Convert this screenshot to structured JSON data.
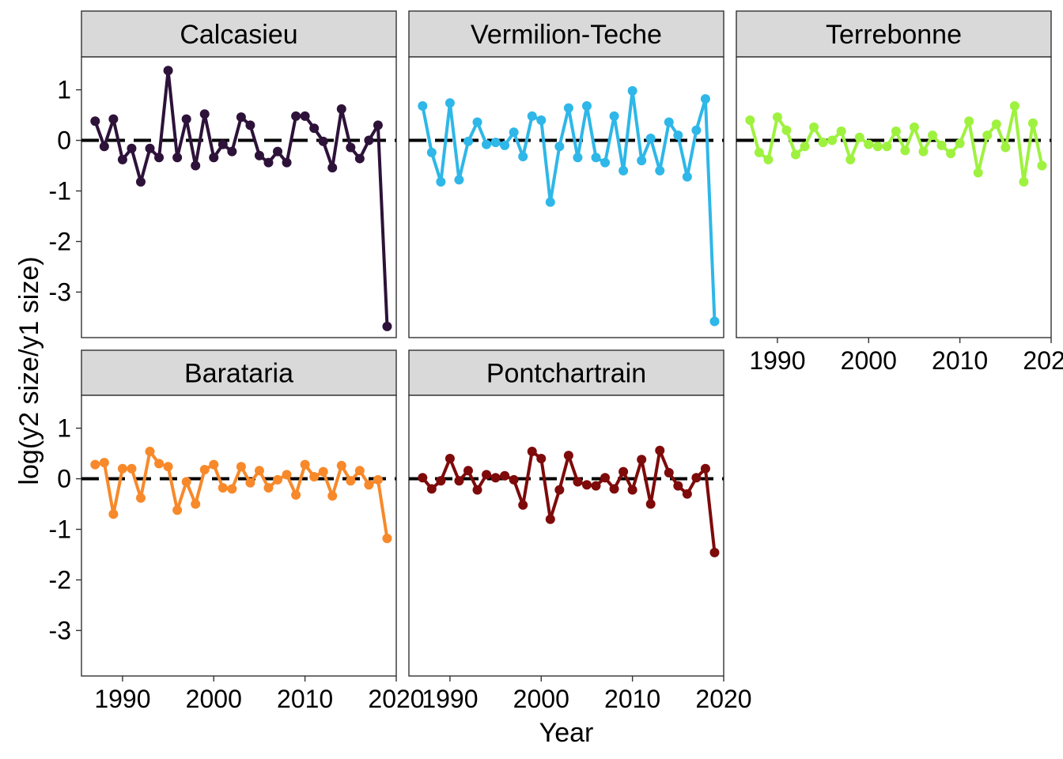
{
  "chart_data": {
    "type": "line",
    "xlabel": "Year",
    "ylabel": "log(y2 size/y1 size)",
    "xlim": [
      1985.5,
      2020
    ],
    "ylim": [
      -3.9,
      1.65
    ],
    "x_ticks": [
      1990,
      2000,
      2010,
      2020
    ],
    "x_tick_labels": [
      "1990",
      "2000",
      "2010",
      "2020"
    ],
    "y_ticks": [
      1,
      0,
      -1,
      -2,
      -3
    ],
    "y_tick_labels": [
      "1",
      "0",
      "-1",
      "-2",
      "-3"
    ],
    "reference_line": 0,
    "grid": false,
    "legend": "none",
    "x": [
      1987,
      1988,
      1989,
      1990,
      1991,
      1992,
      1993,
      1994,
      1995,
      1996,
      1997,
      1998,
      1999,
      2000,
      2001,
      2002,
      2003,
      2004,
      2005,
      2006,
      2007,
      2008,
      2009,
      2010,
      2011,
      2012,
      2013,
      2014,
      2015,
      2016,
      2017,
      2018,
      2019
    ],
    "panels": [
      {
        "title": "Calcasieu",
        "color": "#2d1239",
        "values": [
          0.38,
          -0.12,
          0.42,
          -0.38,
          -0.16,
          -0.82,
          -0.16,
          -0.34,
          1.38,
          -0.34,
          0.42,
          -0.5,
          0.52,
          -0.34,
          -0.08,
          -0.22,
          0.46,
          0.3,
          -0.3,
          -0.44,
          -0.22,
          -0.44,
          0.48,
          0.48,
          0.24,
          -0.02,
          -0.54,
          0.62,
          -0.14,
          -0.36,
          0.0,
          0.3,
          -3.68
        ]
      },
      {
        "title": "Vermilion-Teche",
        "color": "#2eb7e8",
        "values": [
          0.68,
          -0.24,
          -0.82,
          0.74,
          -0.78,
          -0.02,
          0.36,
          -0.08,
          -0.04,
          -0.1,
          0.16,
          -0.32,
          0.48,
          0.4,
          -1.22,
          -0.12,
          0.64,
          -0.34,
          0.68,
          -0.34,
          -0.44,
          0.48,
          -0.6,
          0.98,
          -0.4,
          0.04,
          -0.6,
          0.36,
          0.1,
          -0.72,
          0.2,
          0.82,
          -3.58
        ]
      },
      {
        "title": "Terrebonne",
        "color": "#9ef23f",
        "values": [
          0.4,
          -0.24,
          -0.38,
          0.46,
          0.2,
          -0.28,
          -0.12,
          0.26,
          -0.04,
          0.0,
          0.18,
          -0.38,
          0.06,
          -0.08,
          -0.12,
          -0.12,
          0.18,
          -0.2,
          0.26,
          -0.22,
          0.1,
          -0.1,
          -0.26,
          -0.06,
          0.38,
          -0.64,
          0.1,
          0.32,
          -0.14,
          0.68,
          -0.82,
          0.34,
          -0.5
        ]
      },
      {
        "title": "Barataria",
        "color": "#f7892a",
        "values": [
          0.28,
          0.32,
          -0.7,
          0.2,
          0.2,
          -0.38,
          0.54,
          0.3,
          0.24,
          -0.62,
          -0.06,
          -0.5,
          0.18,
          0.28,
          -0.18,
          -0.2,
          0.24,
          -0.08,
          0.16,
          -0.18,
          -0.02,
          0.08,
          -0.32,
          0.28,
          0.04,
          0.14,
          -0.34,
          0.26,
          -0.04,
          0.16,
          -0.12,
          -0.02,
          -1.18
        ]
      },
      {
        "title": "Pontchartrain",
        "color": "#7e0a0a",
        "values": [
          0.02,
          -0.2,
          -0.04,
          0.4,
          -0.04,
          0.16,
          -0.22,
          0.08,
          0.02,
          0.06,
          -0.02,
          -0.52,
          0.54,
          0.4,
          -0.8,
          -0.22,
          0.46,
          -0.06,
          -0.12,
          -0.14,
          0.02,
          -0.2,
          0.14,
          -0.22,
          0.38,
          -0.5,
          0.56,
          0.12,
          -0.14,
          -0.3,
          0.02,
          0.2,
          -1.46
        ]
      }
    ]
  }
}
